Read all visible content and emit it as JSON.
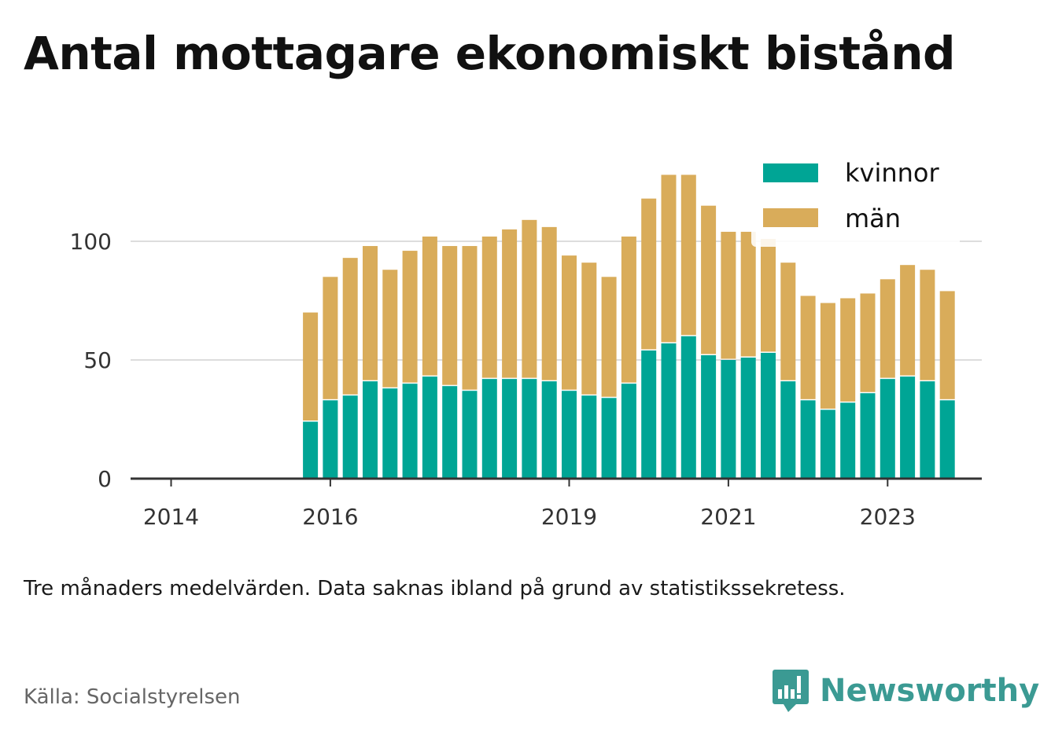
{
  "title": "Antal mottagare ekonomiskt bistånd",
  "note": "Tre månaders medelvärden. Data saknas ibland på grund av statistikssekretess.",
  "source": "Källa: Socialstyrelsen",
  "brand": {
    "name": "Newsworthy",
    "icon": "newsworthy-logo-icon",
    "color": "#3b9a93"
  },
  "colors": {
    "kvinnor": "#00a595",
    "man": "#d9ac5a",
    "grid": "#dddddd",
    "axis": "#333333"
  },
  "chart_data": {
    "type": "bar",
    "stacked": true,
    "title": "Antal mottagare ekonomiskt bistånd",
    "xlabel": "",
    "ylabel": "",
    "ylim": [
      0,
      135
    ],
    "y_ticks": [
      0,
      50,
      100
    ],
    "x_ticks": [
      "2014",
      "2016",
      "2019",
      "2021",
      "2023"
    ],
    "grid": true,
    "legend_position": "top-right",
    "categories": [
      "2015-Q4",
      "2016-Q1",
      "2016-Q2",
      "2016-Q3",
      "2016-Q4",
      "2017-Q1",
      "2017-Q2",
      "2017-Q3",
      "2017-Q4",
      "2018-Q1",
      "2018-Q2",
      "2018-Q3",
      "2018-Q4",
      "2019-Q1",
      "2019-Q2",
      "2019-Q3",
      "2019-Q4",
      "2020-Q1",
      "2020-Q2",
      "2020-Q3",
      "2020-Q4",
      "2021-Q1",
      "2021-Q2",
      "2021-Q3",
      "2021-Q4",
      "2022-Q1",
      "2022-Q2",
      "2022-Q3",
      "2022-Q4",
      "2023-Q1",
      "2023-Q2",
      "2023-Q3",
      "2023-Q4"
    ],
    "series": [
      {
        "name": "kvinnor",
        "color": "#00a595",
        "values": [
          24,
          33,
          35,
          41,
          38,
          40,
          43,
          39,
          37,
          42,
          42,
          42,
          41,
          37,
          35,
          34,
          40,
          54,
          57,
          60,
          52,
          50,
          51,
          53,
          41,
          33,
          29,
          32,
          36,
          42,
          43,
          41,
          33
        ]
      },
      {
        "name": "män",
        "color": "#d9ac5a",
        "values": [
          46,
          52,
          58,
          57,
          50,
          56,
          59,
          59,
          61,
          60,
          63,
          67,
          65,
          57,
          56,
          51,
          62,
          64,
          71,
          68,
          63,
          54,
          53,
          48,
          50,
          44,
          45,
          44,
          42,
          42,
          47,
          47,
          46
        ]
      }
    ]
  }
}
